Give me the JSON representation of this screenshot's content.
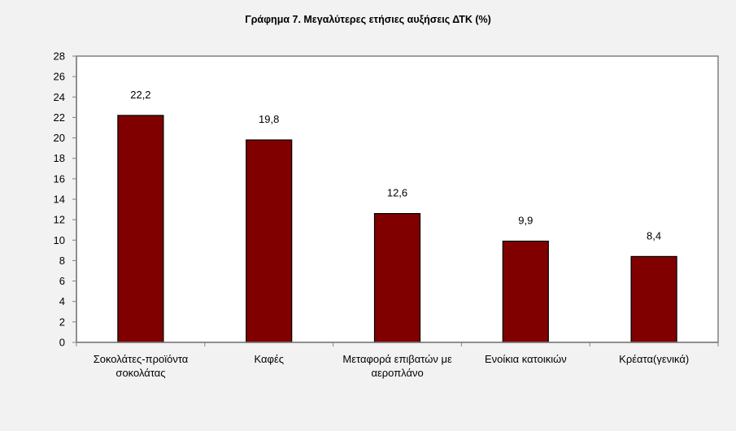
{
  "chart_data": {
    "type": "bar",
    "title": "Γράφημα 7. Μεγαλύτερες ετήσιες αυξήσεις ΔΤΚ (%)",
    "categories": [
      "Σοκολάτες-προϊόντα\nσοκολάτας",
      "Καφές",
      "Μεταφορά επιβατών με\nαεροπλάνο",
      "Ενοίκια κατοικιών",
      "Κρέατα(γενικά)"
    ],
    "values": [
      22.2,
      19.8,
      12.6,
      9.9,
      8.4
    ],
    "data_labels": [
      "22,2",
      "19,8",
      "12,6",
      "9,9",
      "8,4"
    ],
    "xlabel": "",
    "ylabel": "",
    "ylim": [
      0,
      28
    ],
    "yticks": [
      0,
      2,
      4,
      6,
      8,
      10,
      12,
      14,
      16,
      18,
      20,
      22,
      24,
      26,
      28
    ],
    "grid": false,
    "legend": "none",
    "bar_color": "#800000",
    "plot_background": "#ffffff",
    "page_background": "#f2f2f2"
  }
}
